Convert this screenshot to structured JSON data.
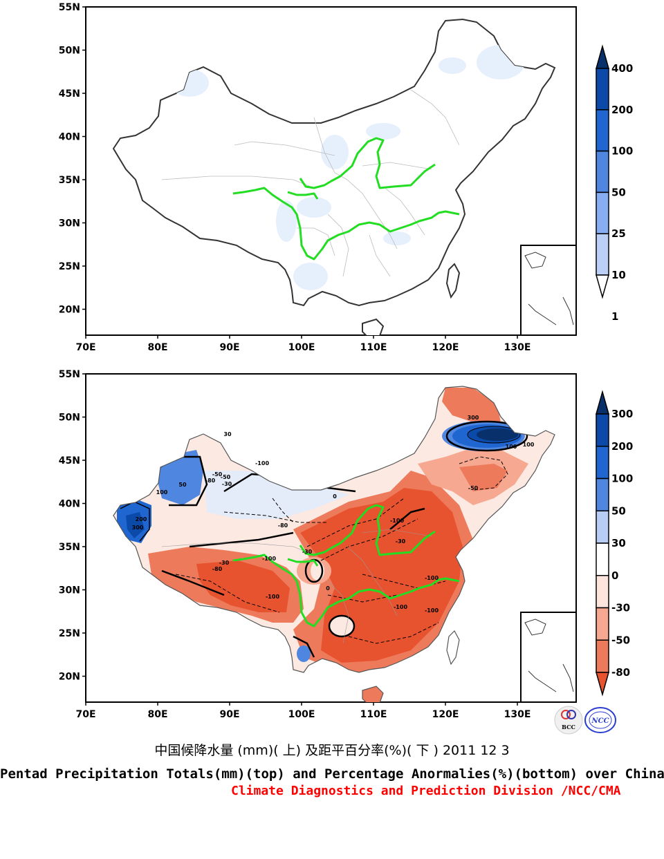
{
  "map_top": {
    "lat_labels": [
      "55N",
      "50N",
      "45N",
      "40N",
      "35N",
      "30N",
      "25N",
      "20N"
    ],
    "lon_labels": [
      "70E",
      "80E",
      "90E",
      "100E",
      "110E",
      "120E",
      "130E"
    ],
    "colorbar_labels": [
      "400",
      "200",
      "100",
      "50",
      "25",
      "10",
      "1"
    ],
    "colorbar_colors": [
      "#08306b",
      "#0b4aa8",
      "#1f66d1",
      "#4f86e0",
      "#86aef0",
      "#bcd0f7",
      "#ffffff"
    ]
  },
  "map_bottom": {
    "lat_labels": [
      "55N",
      "50N",
      "45N",
      "40N",
      "35N",
      "30N",
      "25N",
      "20N"
    ],
    "lon_labels": [
      "70E",
      "80E",
      "90E",
      "100E",
      "110E",
      "120E",
      "130E"
    ],
    "colorbar_labels": [
      "300",
      "200",
      "100",
      "50",
      "30",
      "0",
      "-30",
      "-50",
      "-80"
    ],
    "colorbar_colors": [
      "#08306b",
      "#0b4aa8",
      "#1f66d1",
      "#4f86e0",
      "#b8cdf5",
      "#ffffff",
      "#fde4dc",
      "#f6a890",
      "#ee7a5c",
      "#e8532f"
    ],
    "contour_labels": [
      "-100",
      "-100",
      "-100",
      "-100",
      "-100",
      "-100",
      "-100",
      "-80",
      "-80",
      "-80",
      "-50",
      "-50",
      "-30",
      "-30",
      "-30",
      "-30",
      "0",
      "0",
      "100",
      "100",
      "200",
      "300",
      "300",
      "100",
      "30",
      "50",
      "-50"
    ]
  },
  "logos": {
    "left": "BCC",
    "right": "NCC"
  },
  "caption": {
    "chinese": "中国候降水量 (mm)( 上) 及距平百分率(%)( 下 ) 2011 12 3",
    "english": "Pentad Precipitation Totals(mm)(top) and Percentage Anormalies(%)(bottom) over China",
    "credit": "Climate Diagnostics and Prediction Division /NCC/CMA"
  },
  "colors": {
    "river": "#22dd22",
    "credit": "#ff0000",
    "border": "#333333"
  }
}
